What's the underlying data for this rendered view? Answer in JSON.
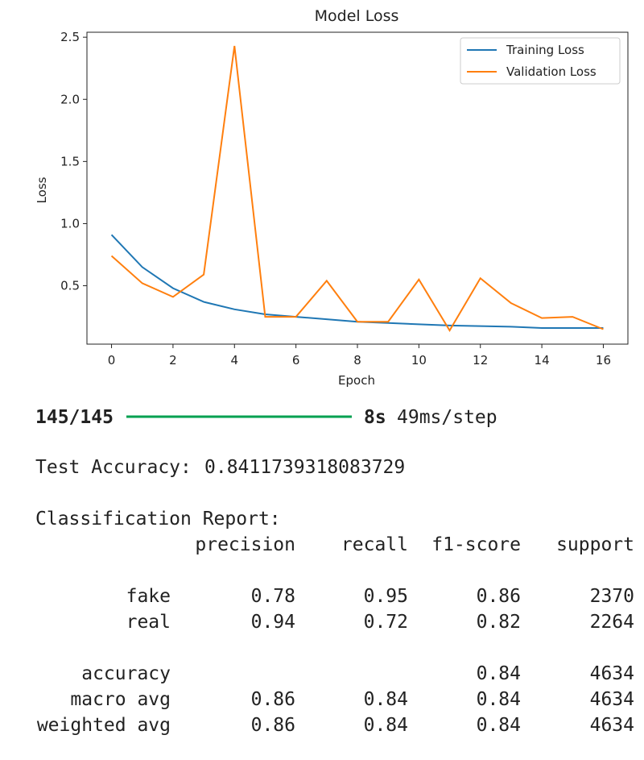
{
  "chart_data": {
    "type": "line",
    "title": "Model Loss",
    "x_label": "Epoch",
    "y_label": "Loss",
    "x": [
      0,
      1,
      2,
      3,
      4,
      5,
      6,
      7,
      8,
      9,
      10,
      11,
      12,
      13,
      14,
      15,
      16
    ],
    "series": [
      {
        "name": "Training Loss",
        "color": "#1f77b4",
        "values": [
          0.91,
          0.65,
          0.48,
          0.37,
          0.31,
          0.27,
          0.25,
          0.23,
          0.21,
          0.2,
          0.19,
          0.18,
          0.175,
          0.17,
          0.16,
          0.16,
          0.16
        ]
      },
      {
        "name": "Validation Loss",
        "color": "#ff7f0e",
        "values": [
          0.74,
          0.52,
          0.41,
          0.59,
          2.43,
          0.25,
          0.25,
          0.54,
          0.21,
          0.21,
          0.55,
          0.14,
          0.56,
          0.36,
          0.24,
          0.25,
          0.15
        ]
      }
    ],
    "xlim": [
      -0.8,
      16.8
    ],
    "xticks": [
      0,
      2,
      4,
      6,
      8,
      10,
      12,
      14,
      16
    ],
    "ylim": [
      0.03,
      2.54
    ],
    "yticks": [
      0.5,
      {
        "value": 1,
        "label": "1.0"
      },
      1.5,
      {
        "value": 2,
        "label": "2.0"
      },
      2.5
    ],
    "grid": false,
    "legend": "upper right"
  },
  "progress": {
    "steps": "145/145",
    "time": "8s",
    "rate": "49ms/step"
  },
  "test_accuracy": {
    "label": "Test Accuracy:",
    "value": "0.8411739318083729"
  },
  "report": {
    "title": "Classification Report:",
    "columns": [
      "precision",
      "recall",
      "f1-score",
      "support"
    ],
    "rows": [
      [
        "fake",
        "0.78",
        "0.95",
        "0.86",
        "2370"
      ],
      [
        "real",
        "0.94",
        "0.72",
        "0.82",
        "2264"
      ],
      [
        "accuracy",
        null,
        null,
        "0.84",
        "4634"
      ],
      [
        "macro avg",
        "0.86",
        "0.84",
        "0.84",
        "4634"
      ],
      [
        "weighted avg",
        "0.86",
        "0.84",
        "0.84",
        "4634"
      ]
    ]
  }
}
